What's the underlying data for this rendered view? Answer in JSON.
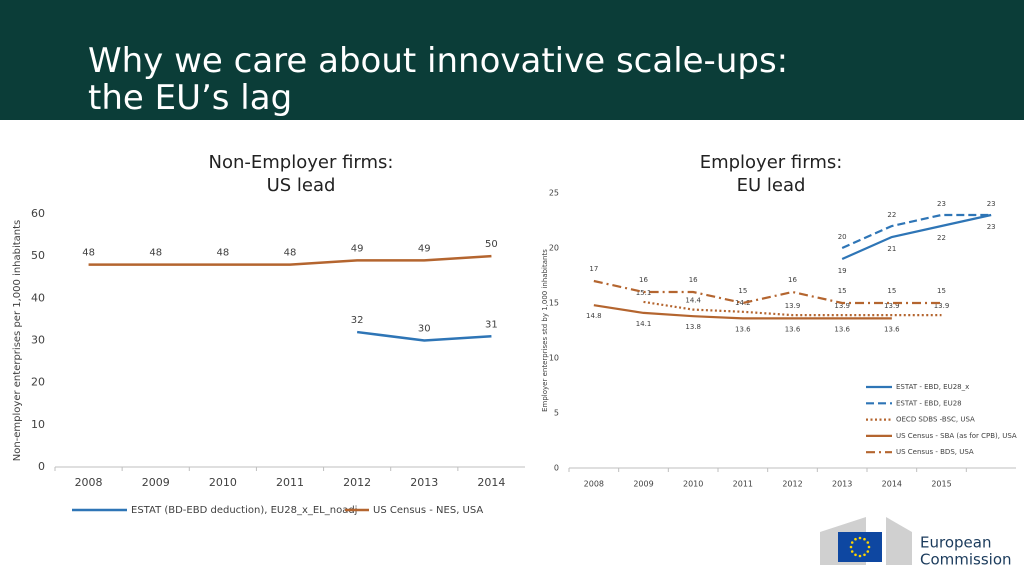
{
  "slide_title": [
    "Why we care about innovative scale-ups:",
    "the EU’s lag"
  ],
  "logo": [
    "European",
    "Commission"
  ],
  "chart_data": [
    {
      "type": "line",
      "title": [
        "Non-Employer firms:",
        "US lead"
      ],
      "y_label": "Non-employer enterprises per 1,000 inhabitants",
      "categories": [
        "2008",
        "2009",
        "2010",
        "2011",
        "2012",
        "2013",
        "2014"
      ],
      "ylim": [
        0,
        60
      ],
      "yticks": [
        0,
        10,
        20,
        30,
        40,
        50,
        60
      ],
      "grid": false,
      "legend": "bottom",
      "series": [
        {
          "name": "ESTAT (BD-EBD deduction), EU28_x_EL_noadj",
          "color": "#2e75b6",
          "dash": "solid",
          "values": [
            null,
            null,
            null,
            null,
            32,
            30,
            31
          ]
        },
        {
          "name": "US Census - NES, USA",
          "color": "#b4652f",
          "dash": "solid",
          "values": [
            48,
            48,
            48,
            48,
            49,
            49,
            50
          ]
        }
      ]
    },
    {
      "type": "line",
      "title": [
        "Employer firms:",
        "EU lead"
      ],
      "y_label": "Employer enterprises std by 1,000 inhabitants",
      "categories": [
        "2008",
        "2009",
        "2010",
        "2011",
        "2012",
        "2013",
        "2014",
        "2015",
        null
      ],
      "ylim": [
        0,
        25
      ],
      "yticks": [
        0,
        5,
        10,
        15,
        20,
        25
      ],
      "grid": false,
      "legend": "lower right",
      "series": [
        {
          "name": "ESTAT - EBD, EU28_x",
          "color": "#2e75b6",
          "dash": "solid",
          "values": [
            null,
            null,
            null,
            null,
            null,
            19,
            21,
            22,
            23
          ]
        },
        {
          "name": "ESTAT - EBD, EU28",
          "color": "#2e75b6",
          "dash": "dashed",
          "values": [
            null,
            null,
            null,
            null,
            null,
            20,
            22,
            23,
            23
          ]
        },
        {
          "name": "OECD SDBS -BSC, USA",
          "color": "#b4652f",
          "dash": "dotted",
          "values": [
            null,
            15.1,
            14.4,
            14.2,
            13.9,
            13.9,
            13.9,
            13.9,
            null
          ]
        },
        {
          "name": "US Census - SBA (as for CPB), USA",
          "color": "#b4652f",
          "dash": "solid",
          "values": [
            14.8,
            14.1,
            13.8,
            13.6,
            13.6,
            13.6,
            13.6,
            null,
            null
          ]
        },
        {
          "name": "US Census - BDS, USA",
          "color": "#b4652f",
          "dash": "dashdot",
          "values": [
            17,
            16,
            16,
            15,
            16,
            15,
            15,
            15,
            null
          ]
        }
      ]
    }
  ]
}
